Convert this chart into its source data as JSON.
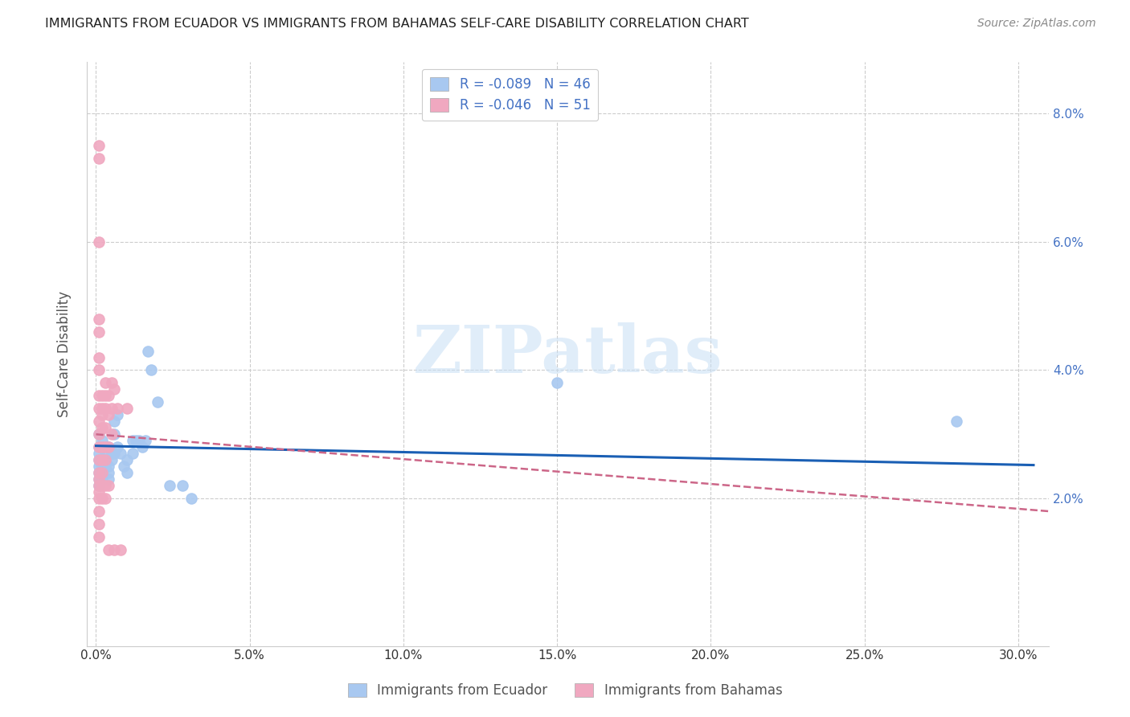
{
  "title": "IMMIGRANTS FROM ECUADOR VS IMMIGRANTS FROM BAHAMAS SELF-CARE DISABILITY CORRELATION CHART",
  "source": "Source: ZipAtlas.com",
  "ylabel": "Self-Care Disability",
  "watermark": "ZIPatlas",
  "ecuador_color": "#a8c8f0",
  "bahamas_color": "#f0a8c0",
  "ecuador_line_color": "#1a5fb4",
  "bahamas_line_color": "#cc6688",
  "legend_blue_label": "R = -0.089   N = 46",
  "legend_pink_label": "R = -0.046   N = 51",
  "xlim": [
    -0.003,
    0.31
  ],
  "ylim": [
    -0.003,
    0.088
  ],
  "xtick_vals": [
    0.0,
    0.05,
    0.1,
    0.15,
    0.2,
    0.25,
    0.3
  ],
  "xtick_labels": [
    "0.0%",
    "5.0%",
    "10.0%",
    "15.0%",
    "20.0%",
    "25.0%",
    "30.0%"
  ],
  "ytick_vals": [
    0.02,
    0.04,
    0.06,
    0.08
  ],
  "ytick_labels": [
    "2.0%",
    "4.0%",
    "6.0%",
    "8.0%"
  ],
  "ecuador_scatter": [
    [
      0.001,
      0.028
    ],
    [
      0.001,
      0.03
    ],
    [
      0.001,
      0.025
    ],
    [
      0.001,
      0.022
    ],
    [
      0.001,
      0.027
    ],
    [
      0.001,
      0.026
    ],
    [
      0.001,
      0.024
    ],
    [
      0.001,
      0.023
    ],
    [
      0.002,
      0.028
    ],
    [
      0.002,
      0.026
    ],
    [
      0.002,
      0.025
    ],
    [
      0.002,
      0.024
    ],
    [
      0.002,
      0.023
    ],
    [
      0.002,
      0.029
    ],
    [
      0.003,
      0.027
    ],
    [
      0.003,
      0.025
    ],
    [
      0.003,
      0.026
    ],
    [
      0.004,
      0.028
    ],
    [
      0.004,
      0.025
    ],
    [
      0.004,
      0.024
    ],
    [
      0.004,
      0.023
    ],
    [
      0.005,
      0.027
    ],
    [
      0.005,
      0.026
    ],
    [
      0.006,
      0.032
    ],
    [
      0.006,
      0.03
    ],
    [
      0.006,
      0.027
    ],
    [
      0.007,
      0.033
    ],
    [
      0.007,
      0.028
    ],
    [
      0.008,
      0.027
    ],
    [
      0.009,
      0.025
    ],
    [
      0.01,
      0.026
    ],
    [
      0.01,
      0.024
    ],
    [
      0.012,
      0.029
    ],
    [
      0.012,
      0.027
    ],
    [
      0.013,
      0.029
    ],
    [
      0.014,
      0.029
    ],
    [
      0.015,
      0.028
    ],
    [
      0.016,
      0.029
    ],
    [
      0.017,
      0.043
    ],
    [
      0.018,
      0.04
    ],
    [
      0.02,
      0.035
    ],
    [
      0.024,
      0.022
    ],
    [
      0.028,
      0.022
    ],
    [
      0.031,
      0.02
    ],
    [
      0.15,
      0.038
    ],
    [
      0.28,
      0.032
    ]
  ],
  "bahamas_scatter": [
    [
      0.001,
      0.075
    ],
    [
      0.001,
      0.073
    ],
    [
      0.001,
      0.06
    ],
    [
      0.001,
      0.048
    ],
    [
      0.001,
      0.046
    ],
    [
      0.001,
      0.042
    ],
    [
      0.001,
      0.04
    ],
    [
      0.001,
      0.036
    ],
    [
      0.001,
      0.034
    ],
    [
      0.001,
      0.032
    ],
    [
      0.001,
      0.03
    ],
    [
      0.001,
      0.028
    ],
    [
      0.001,
      0.026
    ],
    [
      0.001,
      0.024
    ],
    [
      0.001,
      0.023
    ],
    [
      0.001,
      0.022
    ],
    [
      0.001,
      0.021
    ],
    [
      0.001,
      0.02
    ],
    [
      0.001,
      0.018
    ],
    [
      0.001,
      0.016
    ],
    [
      0.001,
      0.014
    ],
    [
      0.002,
      0.036
    ],
    [
      0.002,
      0.034
    ],
    [
      0.002,
      0.033
    ],
    [
      0.002,
      0.031
    ],
    [
      0.002,
      0.028
    ],
    [
      0.002,
      0.026
    ],
    [
      0.002,
      0.024
    ],
    [
      0.002,
      0.022
    ],
    [
      0.002,
      0.02
    ],
    [
      0.003,
      0.038
    ],
    [
      0.003,
      0.036
    ],
    [
      0.003,
      0.034
    ],
    [
      0.003,
      0.031
    ],
    [
      0.003,
      0.028
    ],
    [
      0.003,
      0.026
    ],
    [
      0.003,
      0.022
    ],
    [
      0.003,
      0.02
    ],
    [
      0.004,
      0.036
    ],
    [
      0.004,
      0.033
    ],
    [
      0.004,
      0.028
    ],
    [
      0.004,
      0.022
    ],
    [
      0.004,
      0.012
    ],
    [
      0.005,
      0.038
    ],
    [
      0.005,
      0.034
    ],
    [
      0.005,
      0.03
    ],
    [
      0.006,
      0.037
    ],
    [
      0.006,
      0.012
    ],
    [
      0.007,
      0.034
    ],
    [
      0.008,
      0.012
    ],
    [
      0.01,
      0.034
    ]
  ],
  "ecuador_line_x": [
    0.0,
    0.305
  ],
  "ecuador_line_y": [
    0.0282,
    0.0252
  ],
  "bahamas_line_x": [
    0.0,
    0.31
  ],
  "bahamas_line_y": [
    0.03,
    0.018
  ]
}
